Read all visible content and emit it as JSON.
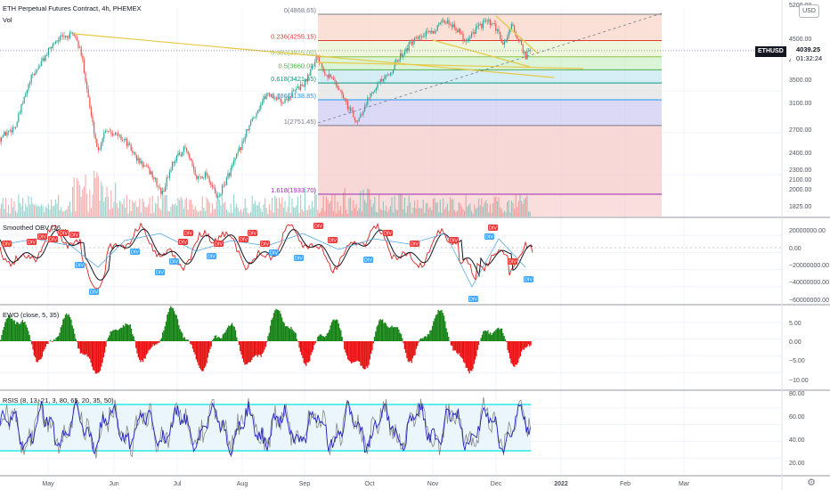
{
  "header": {
    "title": "ETH Perpetual Futures Contract, 4h, PHEMEX",
    "vol_label": "Vol"
  },
  "currency_badge": "USD",
  "price_tag": {
    "symbol": "ETHUSD",
    "price": "4039.25",
    "countdown": "01:32:24"
  },
  "colors": {
    "up": "#26a69a",
    "down": "#ef5350",
    "trendline": "#e6c845",
    "fib_0": "#f5b5b3",
    "fib_236": "#f7cfc0",
    "fib_382": "#e5f2c8",
    "fib_5": "#c8ecc0",
    "fib_618": "#bfe3f0",
    "fib_786": "#dfdfdf",
    "fib_1": "#c9c5f2",
    "fib_1618": "#f5c3c2",
    "ewo_pos": "#138213",
    "ewo_neg": "#e81010",
    "rsi_band": "#00e5e5",
    "rsi_main": "#2424c4",
    "rsi_signal": "#888888"
  },
  "chart_data": [
    {
      "type": "candlestick",
      "pane": "price",
      "price_scale_ticks": [
        "5200.00",
        "4500.00",
        "4000.00",
        "3500.00",
        "3100.00",
        "2700.00",
        "2400.00",
        "2300.00",
        "2100.00",
        "2000.00",
        "1825.00"
      ],
      "x_tick_labels": [
        "May",
        "Jun",
        "Jul",
        "Aug",
        "Sep",
        "Oct",
        "Nov",
        "Dec",
        "2022",
        "Feb",
        "Mar"
      ],
      "fib_levels": [
        {
          "label": "0(4868.65)",
          "ratio": 0,
          "price": 4868.65,
          "color": "#787b86"
        },
        {
          "label": "0.236(4255.15)",
          "ratio": 0.236,
          "price": 4255.15,
          "color": "#e53935"
        },
        {
          "label": "0.382(3915.00)",
          "ratio": 0.382,
          "price": 3915.0,
          "color": "#8bc34a"
        },
        {
          "label": "0.5(3660.00)",
          "ratio": 0.5,
          "price": 3660.0,
          "color": "#4caf50"
        },
        {
          "label": "0.618(3421.45)",
          "ratio": 0.618,
          "price": 3421.45,
          "color": "#089981"
        },
        {
          "label": "0.786(3138.85)",
          "ratio": 0.786,
          "price": 3138.85,
          "color": "#2196f3"
        },
        {
          "label": "1(2751.45)",
          "ratio": 1,
          "price": 2751.45,
          "color": "#787b86"
        },
        {
          "label": "1.618(1933.70)",
          "ratio": 1.618,
          "price": 1933.7,
          "color": "#9c27b0"
        }
      ],
      "approx_close_path": [
        [
          "late Apr",
          2600
        ],
        [
          "mid May",
          4300
        ],
        [
          "late May",
          2500
        ],
        [
          "Jun",
          2700
        ],
        [
          "late Jun",
          1900
        ],
        [
          "Jul",
          2300
        ],
        [
          "late Jul",
          1800
        ],
        [
          "Aug",
          2700
        ],
        [
          "late Aug",
          3300
        ],
        [
          "early Sep",
          3900
        ],
        [
          "late Sep",
          2800
        ],
        [
          "Oct",
          3500
        ],
        [
          "mid Oct",
          3900
        ],
        [
          "Nov",
          4700
        ],
        [
          "mid Nov",
          4200
        ],
        [
          "Dec",
          4600
        ],
        [
          "mid Dec",
          3800
        ],
        [
          "last",
          4039.25
        ]
      ]
    },
    {
      "type": "line",
      "pane": "Smoothed OBV",
      "title": "Smoothed OBV (26...",
      "scale_ticks": [
        "20000000.00",
        "0.00",
        "−20000000.00",
        "−40000000.00",
        "−60000000.00"
      ],
      "signal_tag": "DIV"
    },
    {
      "type": "bar",
      "pane": "EWO",
      "title": "EWO (close, 5, 35)",
      "scale_ticks": [
        "5.00",
        "0.00",
        "−5.00",
        "−10.00"
      ]
    },
    {
      "type": "line",
      "pane": "RSI",
      "title": "RSIS (8, 13, 21, 3, 80, 65, 20, 35, 50)",
      "scale_ticks": [
        "80.00",
        "60.00",
        "40.00",
        "20.00"
      ],
      "bands": [
        70,
        30
      ]
    }
  ]
}
